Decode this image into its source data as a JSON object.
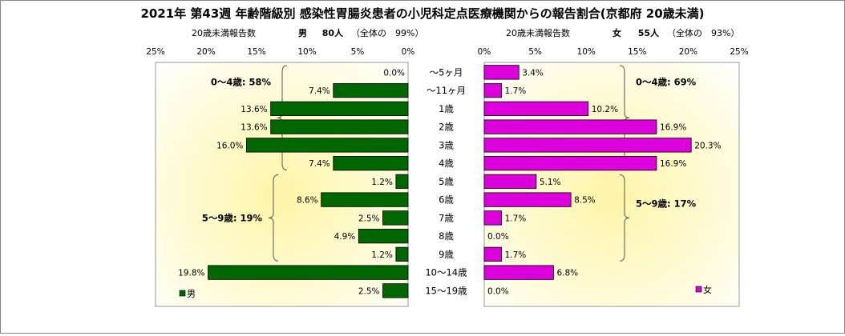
{
  "chart_data": {
    "type": "bar",
    "orientation": "horizontal",
    "layout": "population-pyramid",
    "title": "2021年 第43週 年齢階級別 感染性胃腸炎患者の小児科定点医療機関からの報告割合(京都府 20歳未満)",
    "categories": [
      "～5ヶ月",
      "～11ヶ月",
      "1歳",
      "2歳",
      "3歳",
      "4歳",
      "5歳",
      "6歳",
      "7歳",
      "8歳",
      "9歳",
      "10～14歳",
      "15～19歳"
    ],
    "xlim": [
      0,
      25
    ],
    "tick_labels": [
      "0%",
      "5%",
      "10%",
      "15%",
      "20%",
      "25%"
    ],
    "grid": false,
    "series": [
      {
        "name": "男",
        "side": "left",
        "color": "#006600",
        "header_label": "20歳未満報告数",
        "header_group": "男",
        "header_count": "80人",
        "header_share": "（全体の　99%）",
        "values": [
          0.0,
          7.4,
          13.6,
          13.6,
          16.0,
          7.4,
          1.2,
          8.6,
          2.5,
          4.9,
          1.2,
          19.8,
          2.5
        ],
        "labels": [
          "0.0%",
          "7.4%",
          "13.6%",
          "13.6%",
          "16.0%",
          "7.4%",
          "1.2%",
          "8.6%",
          "2.5%",
          "4.9%",
          "1.2%",
          "19.8%",
          "2.5%"
        ],
        "groups": [
          {
            "label": "0～4歳: 58%",
            "from": 0,
            "to": 5
          },
          {
            "label": "5～9歳: 19%",
            "from": 6,
            "to": 10
          }
        ]
      },
      {
        "name": "女",
        "side": "right",
        "color": "#dd00dd",
        "header_label": "20歳未満報告数",
        "header_group": "女",
        "header_count": "55人",
        "header_share": "（全体の　93%）",
        "values": [
          3.4,
          1.7,
          10.2,
          16.9,
          20.3,
          16.9,
          5.1,
          8.5,
          1.7,
          0.0,
          1.7,
          6.8,
          0.0
        ],
        "labels": [
          "3.4%",
          "1.7%",
          "10.2%",
          "16.9%",
          "20.3%",
          "16.9%",
          "5.1%",
          "8.5%",
          "1.7%",
          "0.0%",
          "1.7%",
          "6.8%",
          "0.0%"
        ],
        "groups": [
          {
            "label": "0～4歳: 69%",
            "from": 0,
            "to": 5
          },
          {
            "label": "5～9歳: 17%",
            "from": 6,
            "to": 10
          }
        ]
      }
    ]
  }
}
